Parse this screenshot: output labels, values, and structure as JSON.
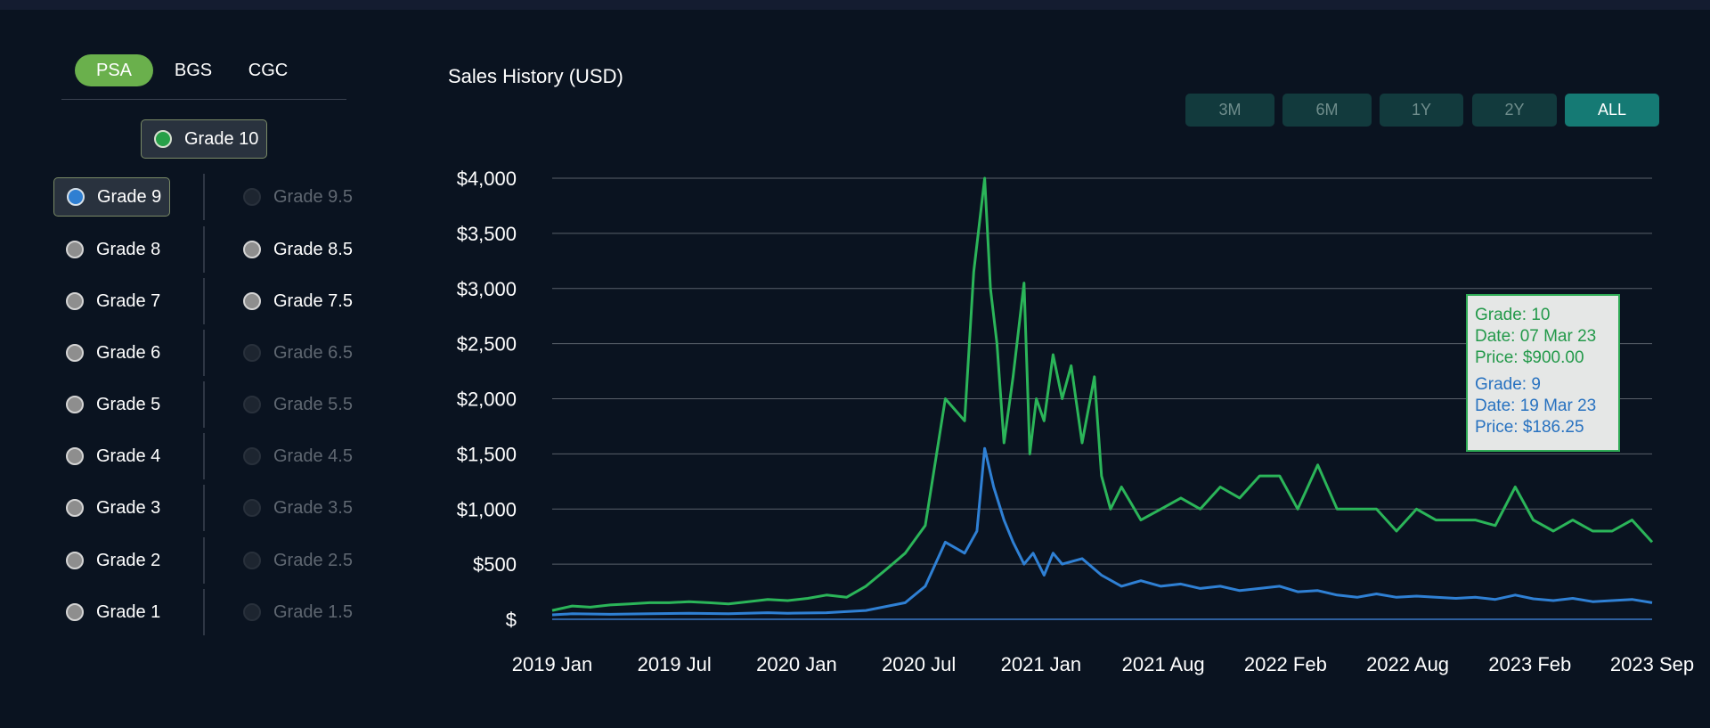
{
  "grader_tabs": [
    "PSA",
    "BGS",
    "CGC"
  ],
  "grades": {
    "top": "Grade 10",
    "left": [
      "Grade 9",
      "Grade 8",
      "Grade 7",
      "Grade 6",
      "Grade 5",
      "Grade 4",
      "Grade 3",
      "Grade 2",
      "Grade 1"
    ],
    "right": [
      "Grade 9.5",
      "Grade 8.5",
      "Grade 7.5",
      "Grade 6.5",
      "Grade 5.5",
      "Grade 4.5",
      "Grade 3.5",
      "Grade 2.5",
      "Grade 1.5"
    ]
  },
  "range_buttons": [
    "3M",
    "6M",
    "1Y",
    "2Y",
    "ALL"
  ],
  "colors": {
    "grade10": "#2bb559",
    "grade9": "#2f80d4",
    "active_tab": "#6ab04c",
    "active_range": "#157a74"
  },
  "tooltip": {
    "grade10": {
      "grade": "Grade: 10",
      "date": "Date: 07 Mar 23",
      "price": "Price: $900.00"
    },
    "grade9": {
      "grade": "Grade: 9",
      "date": "Date: 19 Mar 23",
      "price": "Price: $186.25"
    }
  },
  "chart_data": {
    "type": "line",
    "title": "Sales History (USD)",
    "xlabel": "",
    "ylabel": "",
    "x_tick_labels": [
      "2019 Jan",
      "2019 Jul",
      "2020 Jan",
      "2020 Jul",
      "2021 Jan",
      "2021 Aug",
      "2022 Feb",
      "2022 Aug",
      "2023 Feb",
      "2023 Sep"
    ],
    "y_tick_labels": [
      "$",
      "$500",
      "$1,000",
      "$1,500",
      "$2,000",
      "$2,500",
      "$3,000",
      "$3,500",
      "$4,000"
    ],
    "y_ticks": [
      0,
      500,
      1000,
      1500,
      2000,
      2500,
      3000,
      3500,
      4000
    ],
    "ylim": [
      0,
      4000
    ],
    "x_range": [
      "2019-01",
      "2023-09"
    ],
    "grid": true,
    "legend": "none",
    "series": [
      {
        "name": "Grade: 10",
        "points": [
          [
            "2019-01",
            80
          ],
          [
            "2019-02",
            120
          ],
          [
            "2019-03",
            110
          ],
          [
            "2019-04",
            130
          ],
          [
            "2019-05",
            140
          ],
          [
            "2019-06",
            150
          ],
          [
            "2019-07",
            150
          ],
          [
            "2019-08",
            160
          ],
          [
            "2019-09",
            150
          ],
          [
            "2019-10",
            140
          ],
          [
            "2019-11",
            160
          ],
          [
            "2019-12",
            180
          ],
          [
            "2020-01",
            170
          ],
          [
            "2020-02",
            190
          ],
          [
            "2020-03",
            220
          ],
          [
            "2020-04",
            200
          ],
          [
            "2020-05",
            300
          ],
          [
            "2020-06",
            450
          ],
          [
            "2020-07",
            600
          ],
          [
            "2020-08",
            850
          ],
          [
            "2020-09",
            2000
          ],
          [
            "2020-10",
            1800
          ],
          [
            "2020-10-15",
            3150
          ],
          [
            "2020-11-01",
            4000
          ],
          [
            "2020-11-10",
            3000
          ],
          [
            "2020-11-20",
            2500
          ],
          [
            "2020-12-01",
            1600
          ],
          [
            "2020-12-15",
            2200
          ],
          [
            "2021-01-01",
            3050
          ],
          [
            "2021-01-10",
            1500
          ],
          [
            "2021-01-20",
            2000
          ],
          [
            "2021-02-01",
            1800
          ],
          [
            "2021-02-15",
            2400
          ],
          [
            "2021-03-01",
            2000
          ],
          [
            "2021-03-15",
            2300
          ],
          [
            "2021-04-01",
            1600
          ],
          [
            "2021-04-20",
            2200
          ],
          [
            "2021-05-01",
            1300
          ],
          [
            "2021-05-15",
            1000
          ],
          [
            "2021-06",
            1200
          ],
          [
            "2021-07",
            900
          ],
          [
            "2021-08",
            1000
          ],
          [
            "2021-09",
            1100
          ],
          [
            "2021-10",
            1000
          ],
          [
            "2021-11",
            1200
          ],
          [
            "2021-12",
            1100
          ],
          [
            "2022-01",
            1300
          ],
          [
            "2022-02",
            1300
          ],
          [
            "2022-03",
            1000
          ],
          [
            "2022-04",
            1400
          ],
          [
            "2022-05",
            1000
          ],
          [
            "2022-06",
            1000
          ],
          [
            "2022-07",
            1000
          ],
          [
            "2022-08",
            800
          ],
          [
            "2022-09",
            1000
          ],
          [
            "2022-10",
            900
          ],
          [
            "2022-11",
            900
          ],
          [
            "2022-12",
            900
          ],
          [
            "2023-01",
            850
          ],
          [
            "2023-02",
            1200
          ],
          [
            "2023-03",
            900
          ],
          [
            "2023-04",
            800
          ],
          [
            "2023-05",
            900
          ],
          [
            "2023-06",
            800
          ],
          [
            "2023-07",
            800
          ],
          [
            "2023-08",
            900
          ],
          [
            "2023-09",
            700
          ]
        ]
      },
      {
        "name": "Grade: 9",
        "points": [
          [
            "2019-01",
            40
          ],
          [
            "2019-02",
            50
          ],
          [
            "2019-04",
            45
          ],
          [
            "2019-06",
            50
          ],
          [
            "2019-08",
            55
          ],
          [
            "2019-10",
            50
          ],
          [
            "2019-12",
            60
          ],
          [
            "2020-01",
            55
          ],
          [
            "2020-03",
            60
          ],
          [
            "2020-05",
            80
          ],
          [
            "2020-07",
            150
          ],
          [
            "2020-08",
            300
          ],
          [
            "2020-09",
            700
          ],
          [
            "2020-10",
            600
          ],
          [
            "2020-10-20",
            800
          ],
          [
            "2020-11-01",
            1550
          ],
          [
            "2020-11-15",
            1200
          ],
          [
            "2020-12-01",
            900
          ],
          [
            "2020-12-15",
            700
          ],
          [
            "2021-01-01",
            500
          ],
          [
            "2021-01-15",
            600
          ],
          [
            "2021-02-01",
            400
          ],
          [
            "2021-02-15",
            600
          ],
          [
            "2021-03-01",
            500
          ],
          [
            "2021-04-01",
            550
          ],
          [
            "2021-05-01",
            400
          ],
          [
            "2021-06",
            300
          ],
          [
            "2021-07",
            350
          ],
          [
            "2021-08",
            300
          ],
          [
            "2021-09",
            320
          ],
          [
            "2021-10",
            280
          ],
          [
            "2021-11",
            300
          ],
          [
            "2021-12",
            260
          ],
          [
            "2022-01",
            280
          ],
          [
            "2022-02",
            300
          ],
          [
            "2022-03",
            250
          ],
          [
            "2022-04",
            260
          ],
          [
            "2022-05",
            220
          ],
          [
            "2022-06",
            200
          ],
          [
            "2022-07",
            230
          ],
          [
            "2022-08",
            200
          ],
          [
            "2022-09",
            210
          ],
          [
            "2022-10",
            200
          ],
          [
            "2022-11",
            190
          ],
          [
            "2022-12",
            200
          ],
          [
            "2023-01",
            180
          ],
          [
            "2023-02",
            220
          ],
          [
            "2023-03",
            186.25
          ],
          [
            "2023-04",
            170
          ],
          [
            "2023-05",
            190
          ],
          [
            "2023-06",
            160
          ],
          [
            "2023-07",
            170
          ],
          [
            "2023-08",
            180
          ],
          [
            "2023-09",
            150
          ]
        ]
      }
    ]
  }
}
